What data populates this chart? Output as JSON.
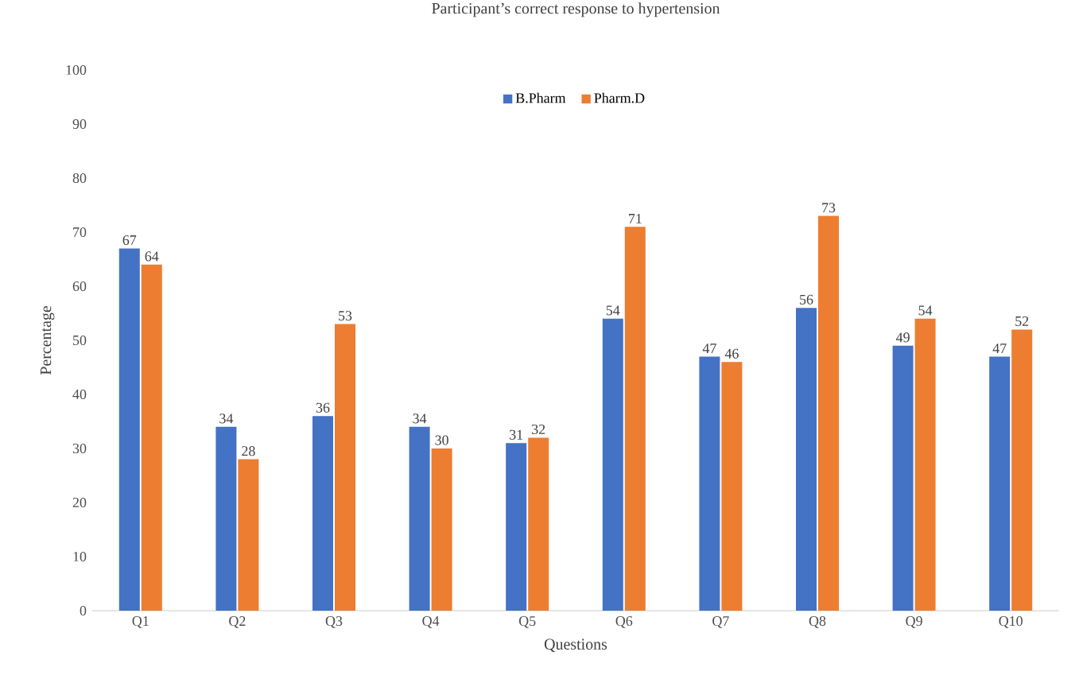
{
  "chart_data": {
    "type": "bar",
    "title": "Participant’s correct response to hypertension",
    "xlabel": "Questions",
    "ylabel": "Percentage",
    "categories": [
      "Q1",
      "Q2",
      "Q3",
      "Q4",
      "Q5",
      "Q6",
      "Q7",
      "Q8",
      "Q9",
      "Q10"
    ],
    "series": [
      {
        "name": "B.Pharm",
        "color": "#4472c4",
        "values": [
          67,
          34,
          36,
          34,
          31,
          54,
          47,
          56,
          49,
          47
        ]
      },
      {
        "name": "Pharm.D",
        "color": "#ed7d31",
        "values": [
          64,
          28,
          53,
          30,
          32,
          71,
          46,
          73,
          54,
          52
        ]
      }
    ],
    "ylim": [
      0,
      100
    ],
    "yticks": [
      0,
      10,
      20,
      30,
      40,
      50,
      60,
      70,
      80,
      90,
      100
    ],
    "grid": false,
    "legend": "top",
    "data_labels": true
  }
}
